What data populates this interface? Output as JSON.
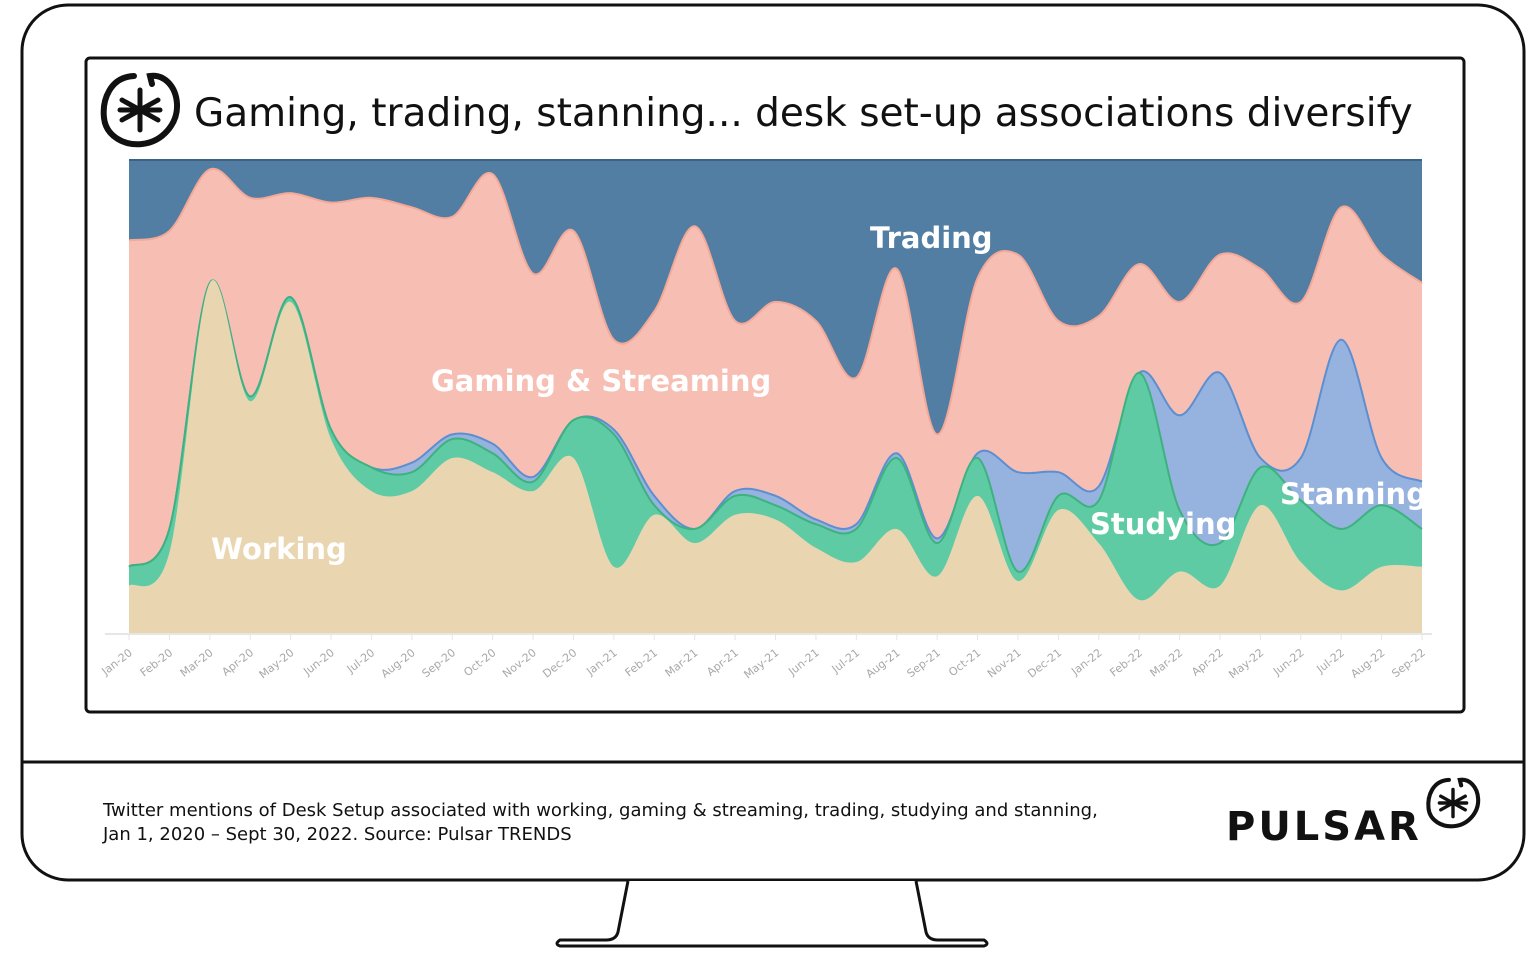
{
  "title": "Gaming, trading, stanning... desk set-up associations diversify",
  "caption": {
    "line1": "Twitter mentions of Desk Setup associated with working, gaming & streaming, trading, studying and stanning,",
    "line2": "Jan 1, 2020 – Sept 30, 2022. Source: Pulsar TRENDS"
  },
  "brand": {
    "name": "PULSAR",
    "logo_icon": "pulsar-asterisk-logo"
  },
  "chart_data": {
    "type": "area",
    "stacking": "percent",
    "title": "Gaming, trading, stanning... desk set-up associations diversify",
    "xlabel": "",
    "ylabel": "",
    "ylim": [
      0,
      100
    ],
    "grid": false,
    "legend": "inline labels",
    "categories": [
      "Jan-20",
      "Feb-20",
      "Mar-20",
      "Apr-20",
      "May-20",
      "Jun-20",
      "Jul-20",
      "Aug-20",
      "Sep-20",
      "Oct-20",
      "Nov-20",
      "Dec-20",
      "Jan-21",
      "Feb-21",
      "Mar-21",
      "Apr-21",
      "May-21",
      "Jun-21",
      "Jul-21",
      "Aug-21",
      "Sep-21",
      "Oct-21",
      "Nov-21",
      "Dec-21",
      "Jan-22",
      "Feb-22",
      "Mar-22",
      "Apr-22",
      "May-22",
      "Jun-22",
      "Jul-22",
      "Aug-22",
      "Sep-22"
    ],
    "series": [
      {
        "name": "Working",
        "color": "#e9d6b1",
        "values": [
          10,
          17,
          74,
          49,
          70,
          41,
          30,
          30,
          37,
          34,
          30,
          37,
          14,
          25,
          19,
          25,
          24,
          18,
          15,
          22,
          12,
          29,
          11,
          26,
          19,
          7,
          13,
          10,
          27,
          15,
          9,
          14,
          14
        ]
      },
      {
        "name": "Studying",
        "color": "#5fcba5",
        "line": "#3db27f",
        "values": [
          4,
          5,
          0,
          1,
          1,
          2,
          5,
          4,
          4,
          4,
          2,
          8,
          28,
          2,
          3,
          4,
          3,
          5,
          7,
          15,
          7,
          8,
          2,
          3,
          9,
          48,
          13,
          9,
          8,
          13,
          13,
          13,
          8
        ]
      },
      {
        "name": "Stanning",
        "color": "#96b2df",
        "line": "#5b8fd2",
        "values": [
          0,
          0,
          0,
          0,
          0,
          0,
          0,
          2,
          1,
          2,
          1,
          0,
          1,
          2,
          0,
          1,
          2,
          1,
          1,
          1,
          1,
          1,
          21,
          5,
          3,
          0,
          20,
          36,
          2,
          9,
          40,
          10,
          10
        ]
      },
      {
        "name": "Gaming & Streaming",
        "color": "#f7beb3",
        "line": "#f3a898",
        "values": [
          69,
          63,
          24,
          42,
          22,
          48,
          57,
          54,
          46,
          57,
          43,
          40,
          19,
          39,
          64,
          36,
          41,
          42,
          31,
          39,
          22,
          37,
          46,
          32,
          36,
          23,
          24,
          25,
          40,
          33,
          28,
          43,
          42
        ]
      },
      {
        "name": "Trading",
        "color": "#527ea3",
        "values": [
          17,
          15,
          2,
          8,
          7,
          9,
          8,
          10,
          12,
          3,
          24,
          15,
          38,
          32,
          14,
          34,
          30,
          34,
          46,
          23,
          58,
          25,
          20,
          34,
          33,
          22,
          30,
          20,
          23,
          30,
          10,
          20,
          26
        ]
      }
    ]
  }
}
